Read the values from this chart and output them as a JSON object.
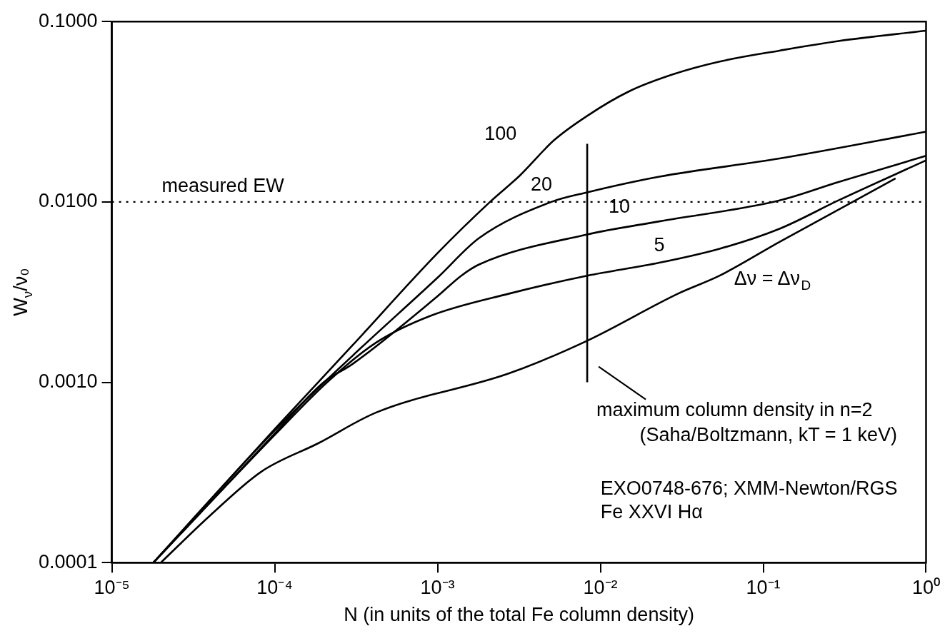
{
  "chart_data": {
    "type": "line",
    "xlabel": "N (in units of the total Fe column density)",
    "ylabel": "W$_{ν}$/ν₀",
    "log": "xy",
    "grid": false,
    "legend": false,
    "marker": "none",
    "line_style": "solid",
    "xlim": [
      1e-05,
      1
    ],
    "ylim": [
      0.0001,
      0.1
    ],
    "xticks": [
      {
        "value": 1e-05,
        "label": "10⁻⁵"
      },
      {
        "value": 0.0001,
        "label": "10⁻⁴"
      },
      {
        "value": 0.001,
        "label": "10⁻³"
      },
      {
        "value": 0.01,
        "label": "10⁻²"
      },
      {
        "value": 0.1,
        "label": "10⁻¹"
      },
      {
        "value": 1,
        "label": "10⁰"
      }
    ],
    "yticks": [
      {
        "value": 0.0001,
        "label": "0.0001"
      },
      {
        "value": 0.001,
        "label": "0.0010"
      },
      {
        "value": 0.01,
        "label": "0.0100"
      },
      {
        "value": 0.1,
        "label": "0.1000"
      }
    ],
    "series": [
      {
        "name": "100",
        "color": "#000000",
        "x": [
          1.8e-05,
          0.0001,
          0.0003,
          0.001,
          0.0021,
          0.0032,
          0.0052,
          0.0083,
          0.015,
          0.028,
          0.054,
          0.126,
          0.29,
          1
        ],
        "values": [
          0.0001,
          0.00055,
          0.0016,
          0.0052,
          0.01,
          0.014,
          0.022,
          0.03,
          0.041,
          0.051,
          0.06,
          0.069,
          0.078,
          0.089
        ]
      },
      {
        "name": "20",
        "color": "#000000",
        "x": [
          1.8e-05,
          0.0001,
          0.0003,
          0.001,
          0.0018,
          0.005,
          0.0083,
          0.023,
          0.126,
          1
        ],
        "values": [
          0.0001,
          0.00054,
          0.0014,
          0.0038,
          0.0063,
          0.01,
          0.0113,
          0.0138,
          0.0174,
          0.0245
        ]
      },
      {
        "name": "10",
        "color": "#000000",
        "x": [
          1.8e-05,
          0.0001,
          0.0002,
          0.0003,
          0.001,
          0.0014,
          0.0018,
          0.0083,
          0.023,
          0.126,
          0.29,
          1
        ],
        "values": [
          0.0001,
          0.00052,
          0.001,
          0.00126,
          0.003,
          0.0039,
          0.0045,
          0.0066,
          0.0078,
          0.0102,
          0.0129,
          0.018
        ]
      },
      {
        "name": "5",
        "color": "#000000",
        "x": [
          1.8e-05,
          0.0001,
          0.00021,
          0.00042,
          0.00091,
          0.00275,
          0.0083,
          0.023,
          0.054,
          0.126,
          0.29,
          1
        ],
        "values": [
          0.0001,
          0.00051,
          0.001,
          0.00166,
          0.00234,
          0.0031,
          0.0039,
          0.0046,
          0.0055,
          0.0071,
          0.0102,
          0.017
        ]
      },
      {
        "name": "Δν = Δν$_{D}$",
        "color": "#000000",
        "x": [
          2e-05,
          4e-05,
          8.3e-05,
          0.000186,
          0.00042,
          0.00275,
          0.0083,
          0.03,
          0.054,
          0.126,
          0.65
        ],
        "values": [
          0.0001,
          0.000182,
          0.00032,
          0.00046,
          0.00068,
          0.00112,
          0.0017,
          0.0031,
          0.0039,
          0.006,
          0.0135
        ]
      },
      {
        "color": "#000000",
        "x": [
          0.0083,
          0.0083
        ],
        "values": [
          0.001,
          0.021
        ]
      }
    ],
    "ref_lines": [
      {
        "axis": "y",
        "value": 0.01,
        "label": "measured EW",
        "line_style": "dotted",
        "color": "#000000"
      }
    ],
    "annotations": [
      "maximum column density in n=2",
      "(Saha/Boltzmann, kT = 1 keV)",
      "EXO0748-676; XMM-Newton/RGS",
      "Fe XXVI Hα"
    ]
  }
}
